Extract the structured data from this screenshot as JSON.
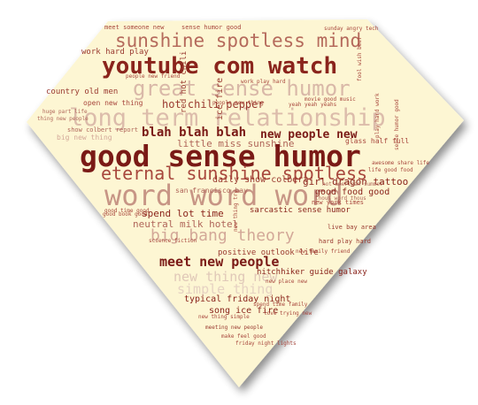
{
  "colors": {
    "background": "#fdf6d3",
    "dark": "#7a1a16",
    "mid": "#a8473d",
    "light": "#d9b8a8",
    "faint": "#e6d2c2"
  },
  "words": {
    "youtube": "youtube com watch",
    "good_sense_humor": "good sense humor",
    "word_word_word": "word word word",
    "long_term": "long term relationship",
    "great_sense_humor": "great sense humor",
    "eternal_sunshine": "eternal sunshine spotless",
    "sunshine_spotless_mind": "sunshine spotless mind",
    "big_bang_theory": "big bang theory",
    "meet_new_people": "meet new people",
    "blah": "blah blah blah",
    "new_people_new": "new people new",
    "new_thing_new": "new thing new",
    "hot_chili_pepper": "hot chili pepper",
    "little_miss_sunshine": "little miss sunshine",
    "spend_lot_time": "spend lot time",
    "neutral_milk_hotel": "neutral milk hotel",
    "typical_friday_night": "typical friday night",
    "song_ice_fire": "song ice fire",
    "simple_thing": "simple thing",
    "daily_show_colbert": "daily show colbert",
    "girl_dragon_tattoo": "girl dragon tattoo",
    "good_food_good": "good food good",
    "sarcastic_sense_humor": "sarcastic sense humor",
    "hitchhiker_guide_galaxy": "hitchhiker guide galaxy",
    "positive_outlook_life": "positive outlook life",
    "country_old_men": "country old men",
    "work_hard_play": "work hard play",
    "sense_humor_good": "sense humor good",
    "meet_someone_new": "meet someone new",
    "san_francisco_bay": "san francisco bay",
    "glass_half_full": "glass half full",
    "red_hot_chili": "red hot chili",
    "meeting_new_people": "meeting new people",
    "open_new_thing": "open new thing",
    "people_new_friend": "people new friend",
    "live_bay_area": "live bay area",
    "hard_play_hard": "hard play hard",
    "new_york_times": "new york times",
    "science_fiction": "science fiction",
    "new_family_friend": "new family friend",
    "big_new_thing": "big new thing",
    "good_time_good": "good time good",
    "make_feel_good": "make feel good",
    "thing_new_people": "thing new people",
    "love_trying_new": "love trying new",
    "new_thing_simple": "new thing simple",
    "show_collect_report": "show colbert report",
    "huge_part_life": "huge part life",
    "work_play_hard": "work play hard",
    "ice_fire": "ice fire",
    "good_book_good": "good book good",
    "yeah_yeah_yeahs": "yeah yeah yeahs",
    "people_new_thing": "people new thing",
    "new_thing_try": "new thing try",
    "awesome_share_life": "awesome share life",
    "life_good_food": "life good food",
    "sense_humor_good2": "sense humor good",
    "thous_word_thous": "thous word thous",
    "hot_american_summer": "hot american summer",
    "spend_time_family": "spend time family",
    "movie_good_music": "movie good music",
    "sunday_angry_tech": "sunday angry tech",
    "fool_wish_beer": "fool wish beer",
    "new_place_new": "new place new",
    "play_hard_work": "play hard work",
    "friday_night_lights": "friday night lights"
  }
}
